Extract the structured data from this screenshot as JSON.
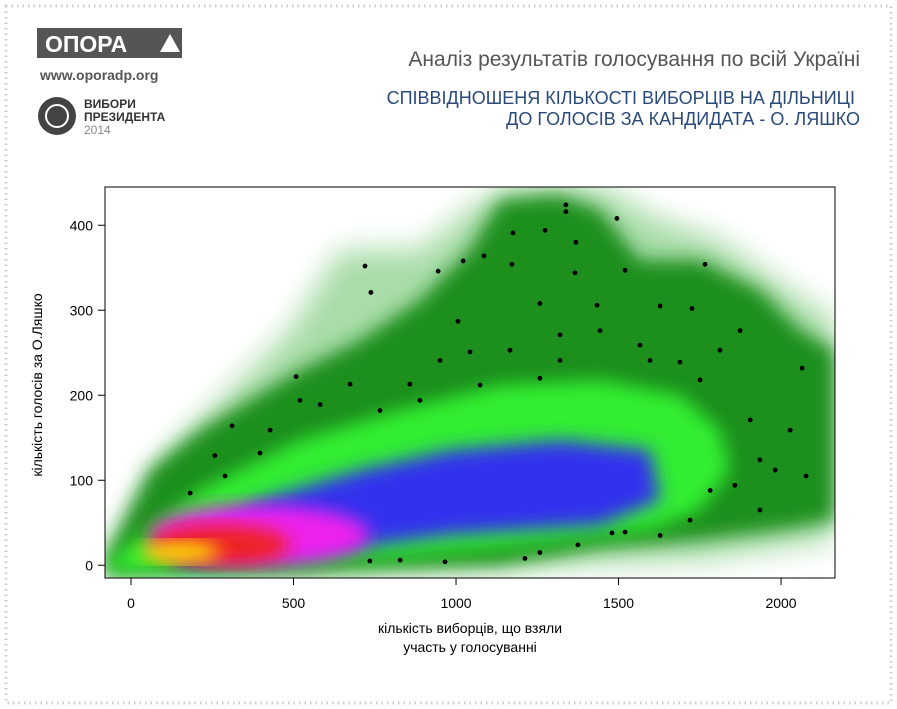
{
  "branding": {
    "logo": "ОПОРА",
    "url": "www.oporadp.org",
    "badge_line1": "ВИБОРИ",
    "badge_line2": "ПРЕЗИДЕНТА",
    "badge_year": "2014"
  },
  "chart_data": {
    "type": "scatter",
    "title": "Аналіз результатів голосування по всій Україні",
    "subtitle": [
      "СПІВВІДНОШЕНЯ КІЛЬКОСТІ ВИБОРЦІВ НА ДІЛЬНИЦІ",
      "ДО ГОЛОСІВ ЗА КАНДИДАТА - О. ЛЯШКО"
    ],
    "xlabel": [
      "кількість виборців, що взяли",
      "участь у голосуванні"
    ],
    "ylabel": "кількість голосів за О.Ляшко",
    "color": "#000000",
    "x": [
      1338,
      1338,
      1495,
      1274,
      1369,
      1175,
      720,
      738,
      945,
      1022,
      1086,
      1172,
      1520,
      1766,
      1366,
      1006,
      1258,
      1434,
      1628,
      1726,
      508,
      311,
      182,
      258,
      397,
      582,
      674,
      766,
      858,
      951,
      1043,
      1166,
      1258,
      1320,
      1443,
      1566,
      1689,
      1812,
      1874,
      1905,
      1935,
      1982,
      2028,
      2065,
      2077,
      1782,
      1720,
      1628,
      1520,
      1375,
      1258,
      1212,
      966,
      828,
      735,
      1935,
      1858,
      1480,
      520,
      428,
      889,
      1074,
      1597,
      1320,
      1751,
      289
    ],
    "values": [
      424,
      416,
      408,
      394,
      380,
      391,
      352,
      321,
      346,
      358,
      364,
      354,
      347,
      354,
      344,
      287,
      308,
      306,
      305,
      302,
      222,
      164,
      85,
      129,
      132,
      189,
      213,
      182,
      213,
      241,
      251,
      253,
      220,
      271,
      276,
      259,
      239,
      253,
      276,
      171,
      124,
      112,
      159,
      232,
      105,
      88,
      53,
      35,
      39,
      24,
      15,
      8,
      4,
      6,
      5,
      65,
      94,
      38,
      194,
      159,
      194,
      212,
      241,
      241,
      218,
      105
    ],
    "xlim": [
      -80,
      2166
    ],
    "ylim": [
      -15,
      445
    ],
    "xticks": [
      0,
      500,
      1000,
      1500,
      2000
    ],
    "yticks": [
      0,
      100,
      200,
      300,
      400
    ]
  }
}
